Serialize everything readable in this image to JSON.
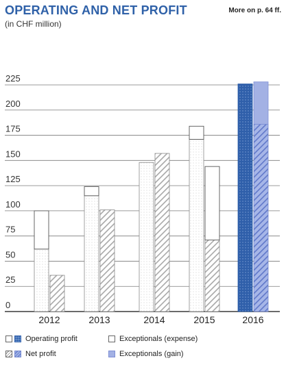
{
  "header": {
    "title": "OPERATING AND NET PROFIT",
    "subtitle": "(in CHF million)",
    "more_link": "More on p. 64 ff."
  },
  "legend": {
    "operating_profit": "Operating profit",
    "net_profit": "Net profit",
    "exceptionals_expense": "Exceptionals (expense)",
    "exceptionals_gain": "Exceptionals (gain)"
  },
  "colors": {
    "title": "#2f61a8",
    "operating_2016": "#2f5faa",
    "gain": "#a3b1e4",
    "net_hatch": "#9a9a9a"
  },
  "chart_data": {
    "type": "bar",
    "categories": [
      "2012",
      "2013",
      "2014",
      "2015",
      "2016"
    ],
    "ylim": [
      0,
      225
    ],
    "yticks": [
      0,
      25,
      50,
      75,
      100,
      125,
      150,
      175,
      200,
      225
    ],
    "xlabel": "",
    "ylabel": "",
    "series": [
      {
        "name": "Operating profit",
        "values": [
          62,
          115,
          148,
          171,
          226
        ]
      },
      {
        "name": "Net profit",
        "values": [
          36,
          101,
          157,
          71,
          186
        ]
      },
      {
        "name": "Exceptionals (expense)",
        "values": [
          38,
          9,
          0,
          13,
          0
        ]
      },
      {
        "name": "Exceptionals (gain)",
        "values": [
          0,
          0,
          0,
          73,
          42
        ]
      }
    ]
  }
}
